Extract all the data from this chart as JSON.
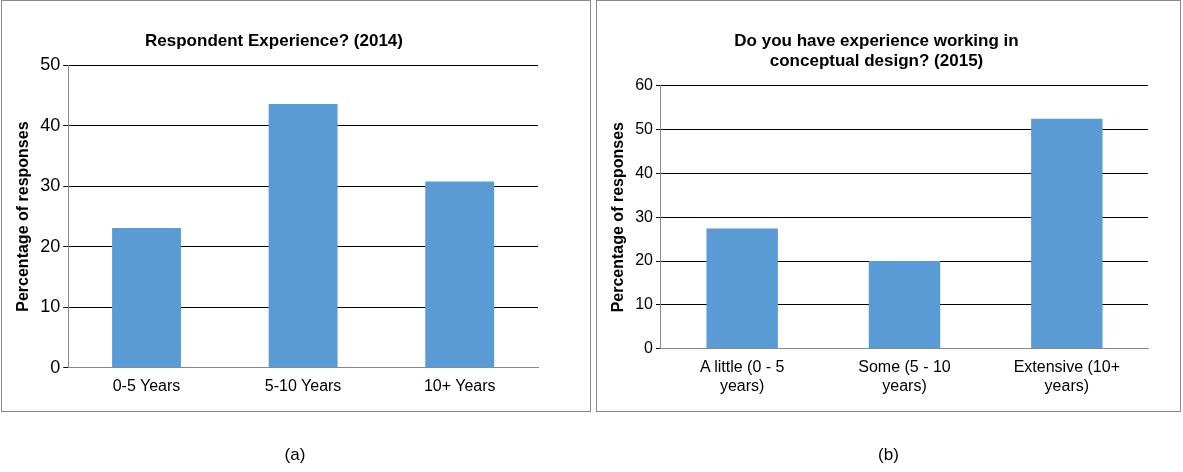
{
  "chart_data": [
    {
      "type": "bar",
      "title": "Respondent Experience? (2014)",
      "ylabel": "Percentage of responses",
      "categories": [
        "0-5 Years",
        "5-10 Years",
        "10+ Years"
      ],
      "values": [
        23.1,
        43.6,
        30.8
      ],
      "color": "#5b9bd5",
      "ylim": [
        0,
        50
      ],
      "yticks": [
        0,
        10,
        20,
        30,
        40,
        50
      ],
      "grid": "y",
      "annotations": [
        "(a)"
      ]
    },
    {
      "type": "bar",
      "title": "Do you have experience working in conceptual design? (2015)",
      "ylabel": "Percentage of responses",
      "categories": [
        "A little (0 - 5 years)",
        "Some (5 - 10 years)",
        "Extensive (10+ years)"
      ],
      "values": [
        27.4,
        20,
        52.5
      ],
      "color": "#5b9bd5",
      "ylim": [
        0,
        60
      ],
      "yticks": [
        0,
        10,
        20,
        30,
        40,
        50,
        60
      ],
      "grid": "y",
      "annotations": [
        "(b)"
      ]
    }
  ]
}
